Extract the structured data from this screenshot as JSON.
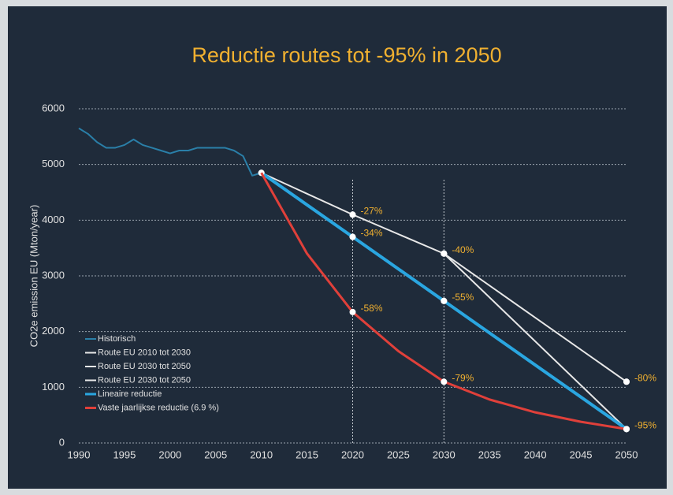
{
  "chart_data": {
    "type": "line",
    "title": "Reductie routes tot -95% in 2050",
    "y_label": "CO2e emission EU (Mton/year)",
    "xlim": [
      1990,
      2050
    ],
    "xticks": [
      1990,
      1995,
      2000,
      2005,
      2010,
      2015,
      2020,
      2025,
      2030,
      2035,
      2040,
      2045,
      2050
    ],
    "ylim": [
      0,
      6000
    ],
    "yticks": [
      0,
      1000,
      2000,
      3000,
      4000,
      5000,
      6000
    ],
    "grid": true,
    "vlines": [
      2020,
      2030
    ],
    "legend": "lower left",
    "series": [
      {
        "name": "Historisch",
        "color": "#2a7fa8",
        "width": 2,
        "markers": false,
        "x": [
          1990,
          1991,
          1992,
          1993,
          1994,
          1995,
          1996,
          1997,
          1998,
          1999,
          2000,
          2001,
          2002,
          2003,
          2004,
          2005,
          2006,
          2007,
          2008,
          2009,
          2010
        ],
        "values": [
          5650,
          5550,
          5400,
          5300,
          5300,
          5350,
          5450,
          5350,
          5300,
          5250,
          5200,
          5250,
          5250,
          5300,
          5300,
          5300,
          5300,
          5250,
          5150,
          4800,
          4850
        ]
      },
      {
        "name": "Route EU 2010 tot 2030",
        "color": "#e8e8e8",
        "width": 2,
        "markers": true,
        "x": [
          2010,
          2020,
          2030
        ],
        "values": [
          4850,
          4100,
          3400
        ]
      },
      {
        "name": "Route EU 2030 tot 2050",
        "color": "#e8e8e8",
        "width": 2,
        "markers": true,
        "x": [
          2030,
          2050
        ],
        "values": [
          3400,
          1100
        ]
      },
      {
        "name": "Route EU 2030 tot 2050",
        "color": "#e8e8e8",
        "width": 2,
        "markers": true,
        "x": [
          2030,
          2050
        ],
        "values": [
          3400,
          250
        ]
      },
      {
        "name": "Lineaire reductie",
        "color": "#2aa6e0",
        "width": 4,
        "markers": true,
        "x": [
          2010,
          2020,
          2030,
          2050
        ],
        "values": [
          4850,
          3700,
          2550,
          250
        ]
      },
      {
        "name": "Vaste jaarlijkse reductie (6.9 %)",
        "color": "#e0403a",
        "width": 3,
        "markers": false,
        "x": [
          2010,
          2015,
          2020,
          2025,
          2030,
          2035,
          2040,
          2045,
          2050
        ],
        "values": [
          4850,
          3400,
          2350,
          1650,
          1100,
          780,
          550,
          380,
          250
        ]
      }
    ],
    "annotations": [
      {
        "text": "-27%",
        "x": 2020,
        "y": 4100
      },
      {
        "text": "-34%",
        "x": 2020,
        "y": 3700
      },
      {
        "text": "-58%",
        "x": 2020,
        "y": 2350
      },
      {
        "text": "-40%",
        "x": 2030,
        "y": 3400
      },
      {
        "text": "-55%",
        "x": 2030,
        "y": 2550
      },
      {
        "text": "-79%",
        "x": 2030,
        "y": 1100
      },
      {
        "text": "-80%",
        "x": 2050,
        "y": 1100
      },
      {
        "text": "-95%",
        "x": 2050,
        "y": 250
      }
    ]
  }
}
